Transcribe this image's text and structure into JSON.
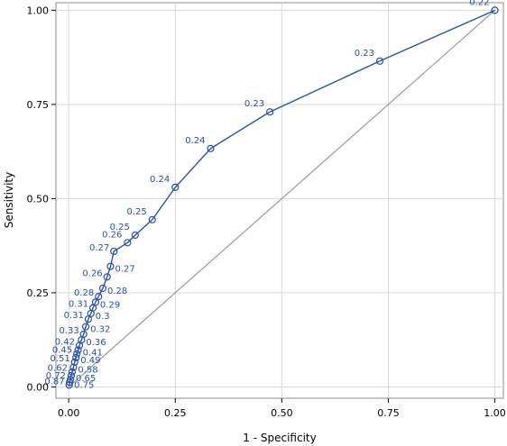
{
  "chart_data": {
    "type": "line",
    "title": "",
    "xlabel": "1 - Specificity",
    "ylabel": "Sensitivity",
    "xlim": [
      -0.03,
      1.02
    ],
    "ylim": [
      -0.03,
      1.02
    ],
    "xticks": [
      0.0,
      0.25,
      0.5,
      0.75,
      1.0
    ],
    "yticks": [
      0.0,
      0.25,
      0.5,
      0.75,
      1.0
    ],
    "xtick_labels": [
      "0.00",
      "0.25",
      "0.50",
      "0.75",
      "1.00"
    ],
    "ytick_labels": [
      "0.00",
      "0.25",
      "0.50",
      "0.75",
      "1.00"
    ],
    "grid": true,
    "reference_line": {
      "x": [
        0,
        1
      ],
      "y": [
        0,
        1
      ]
    },
    "colors": {
      "curve": "#2a4fa8",
      "reference": "#9a9a9a",
      "grid": "#d9d9d9"
    },
    "series": [
      {
        "name": "",
        "points": [
          {
            "x": 1.0,
            "y": 1.0,
            "label": "0.22"
          },
          {
            "x": 0.73,
            "y": 0.865,
            "label": "0.23"
          },
          {
            "x": 0.472,
            "y": 0.73,
            "label": "0.23"
          },
          {
            "x": 0.333,
            "y": 0.633,
            "label": "0.24"
          },
          {
            "x": 0.25,
            "y": 0.53,
            "label": "0.24"
          },
          {
            "x": 0.196,
            "y": 0.444,
            "label": "0.25"
          },
          {
            "x": 0.156,
            "y": 0.403,
            "label": "0.25"
          },
          {
            "x": 0.138,
            "y": 0.383,
            "label": "0.26"
          },
          {
            "x": 0.106,
            "y": 0.36,
            "label": "0.27"
          },
          {
            "x": 0.098,
            "y": 0.32,
            "label": "0.27"
          },
          {
            "x": 0.09,
            "y": 0.292,
            "label": "0.26"
          },
          {
            "x": 0.08,
            "y": 0.262,
            "label": "0.28"
          },
          {
            "x": 0.07,
            "y": 0.24,
            "label": "0.28"
          },
          {
            "x": 0.063,
            "y": 0.225,
            "label": "0.29"
          },
          {
            "x": 0.057,
            "y": 0.21,
            "label": "0.31"
          },
          {
            "x": 0.052,
            "y": 0.195,
            "label": "0.3"
          },
          {
            "x": 0.046,
            "y": 0.18,
            "label": "0.31"
          },
          {
            "x": 0.04,
            "y": 0.16,
            "label": "0.32"
          },
          {
            "x": 0.035,
            "y": 0.14,
            "label": "0.33"
          },
          {
            "x": 0.03,
            "y": 0.125,
            "label": "0.36"
          },
          {
            "x": 0.025,
            "y": 0.11,
            "label": "0.42"
          },
          {
            "x": 0.022,
            "y": 0.098,
            "label": "0.41"
          },
          {
            "x": 0.019,
            "y": 0.088,
            "label": "0.45"
          },
          {
            "x": 0.017,
            "y": 0.078,
            "label": "0.49"
          },
          {
            "x": 0.014,
            "y": 0.066,
            "label": "0.51"
          },
          {
            "x": 0.011,
            "y": 0.052,
            "label": "0.58"
          },
          {
            "x": 0.008,
            "y": 0.04,
            "label": "0.62"
          },
          {
            "x": 0.006,
            "y": 0.03,
            "label": "0.65"
          },
          {
            "x": 0.004,
            "y": 0.02,
            "label": "0.72"
          },
          {
            "x": 0.002,
            "y": 0.012,
            "label": "0.75"
          },
          {
            "x": 0.001,
            "y": 0.005,
            "label": "0.87"
          }
        ]
      }
    ]
  }
}
